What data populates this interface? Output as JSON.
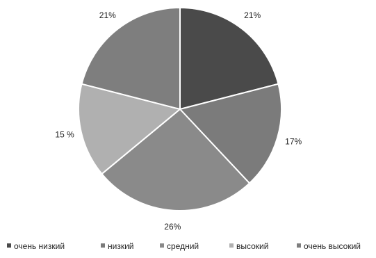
{
  "chart_data": {
    "type": "pie",
    "title": "",
    "start_angle_deg": 0,
    "direction": "clockwise",
    "legend_position": "bottom",
    "slice_border_color": "#ffffff",
    "label_color": "#222222",
    "slices": [
      {
        "name": "очень низкий",
        "value": 21,
        "label": "21%",
        "color": "#4a4a4a"
      },
      {
        "name": "низкий",
        "value": 17,
        "label": "17%",
        "color": "#7b7b7b"
      },
      {
        "name": "средний",
        "value": 26,
        "label": "26%",
        "color": "#8a8a8a"
      },
      {
        "name": "высокий",
        "value": 15,
        "label": "15 %",
        "color": "#b0b0b0"
      },
      {
        "name": "очень высокий",
        "value": 21,
        "label": "21%",
        "color": "#7e7e7e"
      }
    ]
  }
}
